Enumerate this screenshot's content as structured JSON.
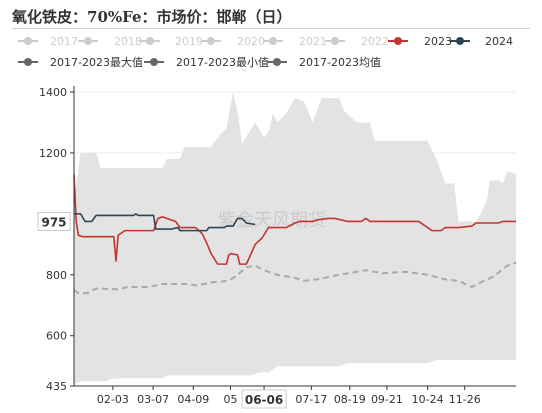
{
  "title": "氧化铁皮：70%Fe：市场价：邯郸（日）",
  "chart_data": {
    "type": "line",
    "watermark": "紫金天风期货",
    "y_axis": {
      "min": 435,
      "max": 1400,
      "ticks": [
        1400,
        1200,
        800,
        600,
        435
      ]
    },
    "highlight_y": {
      "value": 975,
      "label": "975"
    },
    "x_labels": [
      "02-03",
      "03-07",
      "04-09",
      "05",
      "06-06",
      "07-17",
      "08-19",
      "09-21",
      "10-24",
      "11-26"
    ],
    "x_label_positions": [
      0.088,
      0.179,
      0.27,
      0.354,
      0.43,
      0.537,
      0.624,
      0.708,
      0.8,
      0.884
    ],
    "highlight_x": {
      "label": "06-06",
      "value": 0.43
    },
    "legend": [
      {
        "name": "2017",
        "color": "#cccccc",
        "active": false
      },
      {
        "name": "2018",
        "color": "#cccccc",
        "active": false
      },
      {
        "name": "2019",
        "color": "#cccccc",
        "active": false
      },
      {
        "name": "2020",
        "color": "#cccccc",
        "active": false
      },
      {
        "name": "2021",
        "color": "#cccccc",
        "active": false
      },
      {
        "name": "2022",
        "color": "#cccccc",
        "active": false
      },
      {
        "name": "2023",
        "color": "#c23531",
        "active": true
      },
      {
        "name": "2024",
        "color": "#2f4554",
        "active": true
      },
      {
        "name": "2017-2023最大值",
        "color": "#666666",
        "active": true
      },
      {
        "name": "2017-2023最小值",
        "color": "#666666",
        "active": true
      },
      {
        "name": "2017-2023均值",
        "color": "#666666",
        "active": true
      }
    ],
    "band_max": [
      [
        0,
        1040
      ],
      [
        0.015,
        1200
      ],
      [
        0.05,
        1200
      ],
      [
        0.06,
        1150
      ],
      [
        0.2,
        1150
      ],
      [
        0.21,
        1180
      ],
      [
        0.24,
        1180
      ],
      [
        0.25,
        1220
      ],
      [
        0.31,
        1220
      ],
      [
        0.33,
        1260
      ],
      [
        0.345,
        1280
      ],
      [
        0.36,
        1400
      ],
      [
        0.372,
        1320
      ],
      [
        0.38,
        1230
      ],
      [
        0.41,
        1300
      ],
      [
        0.43,
        1250
      ],
      [
        0.44,
        1270
      ],
      [
        0.45,
        1330
      ],
      [
        0.46,
        1300
      ],
      [
        0.48,
        1330
      ],
      [
        0.5,
        1380
      ],
      [
        0.52,
        1370
      ],
      [
        0.54,
        1300
      ],
      [
        0.56,
        1380
      ],
      [
        0.6,
        1380
      ],
      [
        0.61,
        1340
      ],
      [
        0.64,
        1300
      ],
      [
        0.67,
        1300
      ],
      [
        0.68,
        1240
      ],
      [
        0.8,
        1240
      ],
      [
        0.82,
        1180
      ],
      [
        0.84,
        1100
      ],
      [
        0.86,
        1100
      ],
      [
        0.87,
        975
      ],
      [
        0.91,
        975
      ],
      [
        0.92,
        1000
      ],
      [
        0.935,
        1050
      ],
      [
        0.94,
        1110
      ],
      [
        0.96,
        1110
      ],
      [
        0.97,
        1100
      ],
      [
        0.98,
        1140
      ],
      [
        1,
        1130
      ]
    ],
    "band_min": [
      [
        0,
        440
      ],
      [
        0.015,
        450
      ],
      [
        0.07,
        450
      ],
      [
        0.09,
        460
      ],
      [
        0.2,
        460
      ],
      [
        0.21,
        470
      ],
      [
        0.4,
        470
      ],
      [
        0.42,
        480
      ],
      [
        0.44,
        480
      ],
      [
        0.46,
        500
      ],
      [
        0.6,
        500
      ],
      [
        0.62,
        510
      ],
      [
        0.8,
        510
      ],
      [
        0.82,
        520
      ],
      [
        1,
        520
      ]
    ],
    "series": [
      {
        "name": "2023",
        "color": "#c23531",
        "dashed": false,
        "points": [
          [
            0,
            1130
          ],
          [
            0.005,
            975
          ],
          [
            0.01,
            930
          ],
          [
            0.02,
            925
          ],
          [
            0.09,
            925
          ],
          [
            0.095,
            845
          ],
          [
            0.1,
            930
          ],
          [
            0.115,
            945
          ],
          [
            0.18,
            945
          ],
          [
            0.19,
            985
          ],
          [
            0.2,
            990
          ],
          [
            0.23,
            975
          ],
          [
            0.24,
            955
          ],
          [
            0.275,
            955
          ],
          [
            0.29,
            935
          ],
          [
            0.3,
            905
          ],
          [
            0.31,
            870
          ],
          [
            0.325,
            835
          ],
          [
            0.345,
            835
          ],
          [
            0.35,
            865
          ],
          [
            0.355,
            870
          ],
          [
            0.37,
            865
          ],
          [
            0.375,
            835
          ],
          [
            0.39,
            835
          ],
          [
            0.41,
            900
          ],
          [
            0.425,
            920
          ],
          [
            0.44,
            955
          ],
          [
            0.48,
            955
          ],
          [
            0.5,
            970
          ],
          [
            0.51,
            975
          ],
          [
            0.54,
            975
          ],
          [
            0.55,
            980
          ],
          [
            0.575,
            985
          ],
          [
            0.59,
            985
          ],
          [
            0.62,
            975
          ],
          [
            0.65,
            975
          ],
          [
            0.66,
            985
          ],
          [
            0.67,
            975
          ],
          [
            0.78,
            975
          ],
          [
            0.8,
            955
          ],
          [
            0.81,
            945
          ],
          [
            0.83,
            945
          ],
          [
            0.84,
            955
          ],
          [
            0.87,
            955
          ],
          [
            0.9,
            960
          ],
          [
            0.91,
            970
          ],
          [
            0.96,
            970
          ],
          [
            0.97,
            975
          ],
          [
            1,
            975
          ]
        ]
      },
      {
        "name": "2024",
        "color": "#2f4554",
        "dashed": false,
        "points": [
          [
            0,
            1000
          ],
          [
            0.015,
            1000
          ],
          [
            0.025,
            975
          ],
          [
            0.04,
            975
          ],
          [
            0.05,
            995
          ],
          [
            0.135,
            995
          ],
          [
            0.14,
            1000
          ],
          [
            0.145,
            995
          ],
          [
            0.18,
            995
          ],
          [
            0.185,
            950
          ],
          [
            0.22,
            950
          ],
          [
            0.235,
            955
          ],
          [
            0.24,
            945
          ],
          [
            0.3,
            945
          ],
          [
            0.305,
            955
          ],
          [
            0.34,
            955
          ],
          [
            0.345,
            960
          ],
          [
            0.36,
            960
          ],
          [
            0.37,
            985
          ],
          [
            0.38,
            985
          ],
          [
            0.39,
            970
          ],
          [
            0.41,
            965
          ]
        ]
      },
      {
        "name": "2017-2023均值",
        "color": "#aaaaaa",
        "dashed": true,
        "points": [
          [
            0,
            750
          ],
          [
            0.01,
            740
          ],
          [
            0.03,
            740
          ],
          [
            0.05,
            755
          ],
          [
            0.1,
            752
          ],
          [
            0.12,
            760
          ],
          [
            0.17,
            760
          ],
          [
            0.2,
            770
          ],
          [
            0.25,
            770
          ],
          [
            0.28,
            765
          ],
          [
            0.31,
            775
          ],
          [
            0.35,
            780
          ],
          [
            0.37,
            800
          ],
          [
            0.39,
            825
          ],
          [
            0.41,
            830
          ],
          [
            0.43,
            815
          ],
          [
            0.46,
            800
          ],
          [
            0.48,
            795
          ],
          [
            0.5,
            790
          ],
          [
            0.52,
            780
          ],
          [
            0.55,
            785
          ],
          [
            0.6,
            800
          ],
          [
            0.64,
            810
          ],
          [
            0.66,
            815
          ],
          [
            0.7,
            805
          ],
          [
            0.75,
            810
          ],
          [
            0.8,
            800
          ],
          [
            0.84,
            785
          ],
          [
            0.87,
            780
          ],
          [
            0.9,
            760
          ],
          [
            0.92,
            775
          ],
          [
            0.95,
            795
          ],
          [
            0.98,
            830
          ],
          [
            1,
            840
          ]
        ]
      }
    ]
  }
}
